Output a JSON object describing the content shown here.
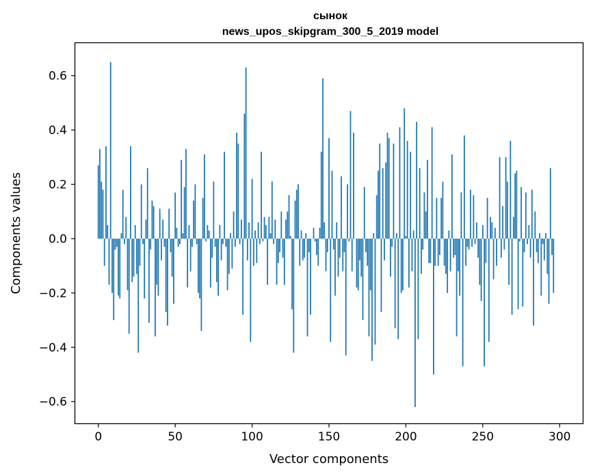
{
  "chart_data": {
    "type": "bar",
    "title": "сынок",
    "subtitle": "news_upos_skipgram_300_5_2019 model",
    "xlabel": "Vector components",
    "ylabel": "Components values",
    "xlim": [
      -15,
      315
    ],
    "ylim": [
      -0.68,
      0.72
    ],
    "xticks": [
      0,
      50,
      100,
      150,
      200,
      250,
      300
    ],
    "yticks": [
      -0.6,
      -0.4,
      -0.2,
      0.0,
      0.2,
      0.4,
      0.6
    ],
    "xtick_labels": [
      "0",
      "50",
      "100",
      "150",
      "200",
      "250",
      "300"
    ],
    "ytick_labels": [
      "−0.6",
      "−0.4",
      "−0.2",
      "0.0",
      "0.2",
      "0.4",
      "0.6"
    ],
    "bar_color": "#1f77b4",
    "grid": false,
    "values": [
      0.27,
      0.33,
      0.21,
      0.18,
      -0.1,
      0.34,
      0.05,
      -0.17,
      0.65,
      -0.2,
      -0.3,
      -0.04,
      -0.03,
      -0.21,
      -0.22,
      0.02,
      0.18,
      -0.02,
      0.08,
      -0.19,
      -0.35,
      0.34,
      -0.16,
      -0.14,
      0.05,
      -0.13,
      -0.42,
      -0.1,
      0.2,
      -0.02,
      -0.22,
      0.07,
      0.26,
      -0.31,
      -0.04,
      0.14,
      0.12,
      -0.36,
      -0.17,
      -0.21,
      0.11,
      -0.08,
      0.07,
      -0.03,
      -0.27,
      -0.32,
      0.11,
      -0.05,
      -0.14,
      -0.24,
      0.17,
      0.04,
      -0.03,
      -0.02,
      0.29,
      0.02,
      0.19,
      0.33,
      -0.18,
      0.05,
      -0.12,
      -0.03,
      0.14,
      0.2,
      -0.02,
      -0.2,
      -0.22,
      -0.34,
      0.15,
      0.31,
      -0.01,
      0.05,
      0.03,
      -0.18,
      -0.07,
      0.21,
      -0.03,
      -0.16,
      -0.21,
      0.05,
      -0.08,
      -0.02,
      0.32,
      -0.03,
      -0.19,
      -0.13,
      0.02,
      -0.11,
      0.1,
      -0.03,
      0.39,
      0.35,
      -0.02,
      0.07,
      -0.28,
      0.46,
      0.63,
      -0.08,
      0.06,
      -0.38,
      0.22,
      -0.1,
      0.03,
      -0.09,
      0.06,
      -0.02,
      0.32,
      -0.01,
      0.08,
      0.05,
      -0.17,
      0.08,
      0.02,
      0.21,
      -0.02,
      0.07,
      -0.17,
      -0.09,
      -0.05,
      0.1,
      -0.07,
      -0.17,
      0.07,
      0.1,
      0.16,
      0.01,
      -0.26,
      -0.42,
      0.14,
      0.18,
      0.2,
      -0.1,
      0.03,
      -0.08,
      -0.07,
      0.02,
      -0.36,
      -0.05,
      -0.28,
      0.0,
      0.04,
      -0.01,
      -0.06,
      -0.1,
      0.04,
      0.32,
      0.59,
      0.06,
      -0.12,
      -0.05,
      0.37,
      -0.38,
      0.25,
      -0.04,
      -0.21,
      0.06,
      -0.14,
      -0.07,
      0.23,
      -0.12,
      -0.05,
      -0.43,
      0.2,
      -0.01,
      0.47,
      -0.12,
      0.39,
      0.0,
      -0.18,
      -0.19,
      -0.08,
      -0.14,
      -0.3,
      0.19,
      -0.05,
      -0.1,
      -0.36,
      -0.19,
      -0.45,
      0.02,
      -0.39,
      0.16,
      0.25,
      0.35,
      -0.27,
      0.26,
      -0.08,
      0.28,
      0.39,
      0.37,
      -0.14,
      -0.03,
      0.35,
      -0.33,
      0.02,
      -0.37,
      0.41,
      -0.2,
      -0.19,
      0.48,
      0.01,
      0.36,
      -0.18,
      0.32,
      -0.12,
      0.03,
      -0.62,
      0.43,
      -0.37,
      0.26,
      -0.13,
      -0.04,
      0.17,
      0.1,
      0.29,
      -0.09,
      -0.09,
      0.41,
      -0.5,
      -0.1,
      0.15,
      -0.1,
      -0.06,
      0.15,
      0.21,
      -0.1,
      -0.13,
      -0.2,
      0.03,
      -0.12,
      0.31,
      -0.07,
      -0.06,
      -0.36,
      -0.12,
      -0.21,
      0.17,
      -0.47,
      0.38,
      -0.1,
      -0.03,
      -0.04,
      0.18,
      -0.03,
      0.16,
      -0.02,
      0.06,
      -0.07,
      -0.17,
      -0.23,
      0.05,
      -0.47,
      -0.09,
      0.15,
      -0.38,
      0.08,
      0.06,
      -0.15,
      0.04,
      -0.1,
      0.0,
      0.3,
      -0.07,
      0.12,
      -0.04,
      0.3,
      0.21,
      -0.17,
      0.36,
      -0.28,
      0.08,
      0.24,
      0.25,
      -0.26,
      -0.01,
      0.19,
      -0.25,
      -0.05,
      0.17,
      -0.02,
      0.05,
      -0.07,
      0.18,
      -0.32,
      0.1,
      -0.05,
      -0.09,
      0.02,
      -0.21,
      -0.02,
      -0.08,
      0.02,
      -0.13,
      -0.24,
      0.26,
      -0.06,
      -0.2
    ]
  }
}
